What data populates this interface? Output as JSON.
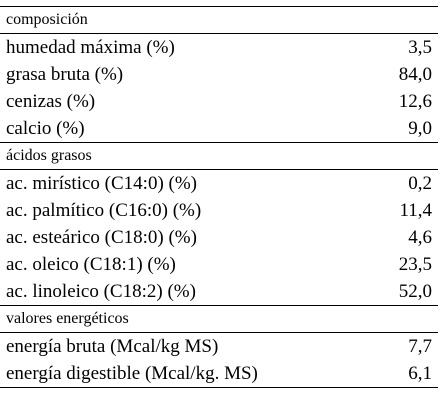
{
  "sections": [
    {
      "title": "composición",
      "rows": [
        {
          "label": "humedad máxima (%)",
          "value": "3,5"
        },
        {
          "label": "grasa bruta (%)",
          "value": "84,0"
        },
        {
          "label": "cenizas (%)",
          "value": "12,6"
        },
        {
          "label": "calcio (%)",
          "value": "9,0"
        }
      ]
    },
    {
      "title": "ácidos grasos",
      "rows": [
        {
          "label": "ac. mirístico (C14:0) (%)",
          "value": "0,2"
        },
        {
          "label": "ac. palmítico (C16:0) (%)",
          "value": "11,4"
        },
        {
          "label": "ac. esteárico (C18:0) (%)",
          "value": "4,6"
        },
        {
          "label": "ac. oleico (C18:1) (%)",
          "value": "23,5"
        },
        {
          "label": "ac. linoleico (C18:2) (%)",
          "value": "52,0"
        }
      ]
    },
    {
      "title": "valores energéticos",
      "rows": [
        {
          "label": "energía bruta (Mcal/kg MS)",
          "value": "7,7"
        },
        {
          "label": "energía digestible (Mcal/kg. MS)",
          "value": "6,1"
        }
      ]
    }
  ]
}
